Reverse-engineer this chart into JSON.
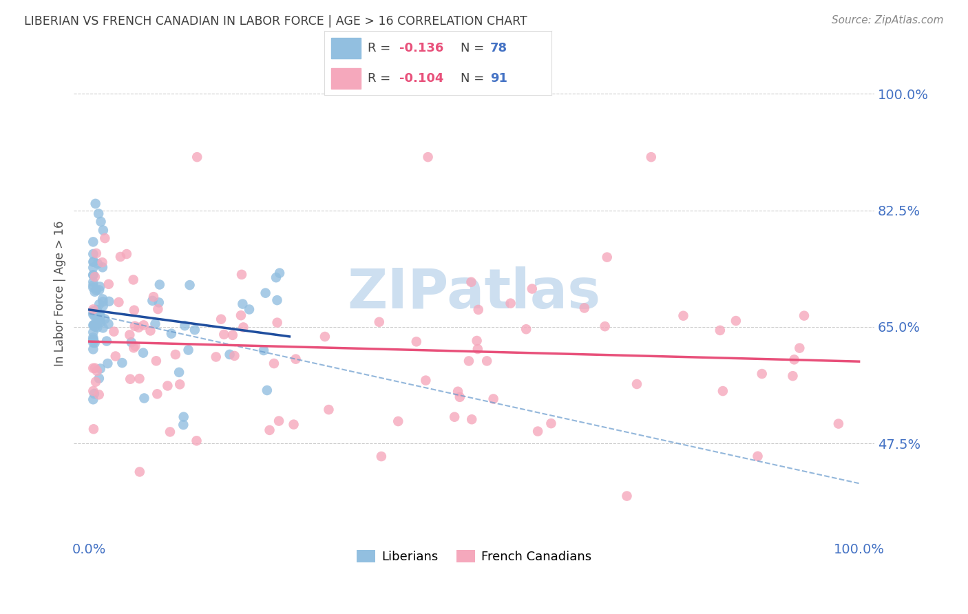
{
  "title": "LIBERIAN VS FRENCH CANADIAN IN LABOR FORCE | AGE > 16 CORRELATION CHART",
  "source": "Source: ZipAtlas.com",
  "ylabel": "In Labor Force | Age > 16",
  "xlim": [
    -0.02,
    1.02
  ],
  "ylim": [
    0.33,
    1.07
  ],
  "yticks": [
    0.475,
    0.65,
    0.825,
    1.0
  ],
  "ytick_labels": [
    "47.5%",
    "65.0%",
    "82.5%",
    "100.0%"
  ],
  "xtick_labels": [
    "0.0%",
    "100.0%"
  ],
  "xticks": [
    0.0,
    1.0
  ],
  "watermark": "ZIPatlas",
  "legend_R1": "-0.136",
  "legend_N1": "78",
  "legend_R2": "-0.104",
  "legend_N2": "91",
  "liberian_color": "#92bfe0",
  "french_color": "#f5a8bc",
  "liberian_line_color": "#1f4e9e",
  "liberian_dash_color": "#6699cc",
  "french_line_color": "#e8507a",
  "background_color": "#ffffff",
  "grid_color": "#cccccc",
  "title_color": "#404040",
  "source_color": "#888888",
  "axis_color": "#4472C4",
  "ylabel_color": "#555555",
  "watermark_color": "#cddff0"
}
